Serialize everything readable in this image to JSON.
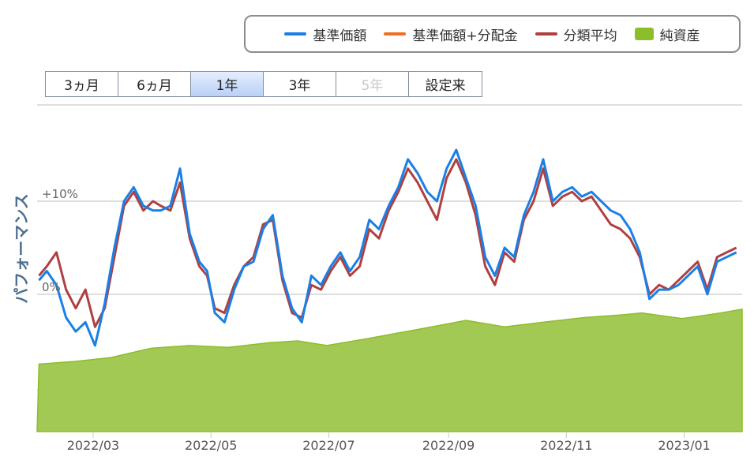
{
  "legend": {
    "items": [
      {
        "label": "基準価額",
        "color": "#1a7fe6",
        "kind": "line"
      },
      {
        "label": "基準価額+分配金",
        "color": "#f07020",
        "kind": "line"
      },
      {
        "label": "分類平均",
        "color": "#b04040",
        "kind": "line"
      },
      {
        "label": "純資産",
        "color": "#8cbd2a",
        "kind": "area"
      }
    ]
  },
  "range_buttons": [
    {
      "label": "3ヵ月",
      "state": "normal"
    },
    {
      "label": "6ヵ月",
      "state": "normal"
    },
    {
      "label": "1年",
      "state": "active"
    },
    {
      "label": "3年",
      "state": "normal"
    },
    {
      "label": "5年",
      "state": "disabled"
    },
    {
      "label": "設定来",
      "state": "normal"
    }
  ],
  "chart_data": {
    "type": "line",
    "ylabel": "パフォーマンス",
    "y_tick_labels": [
      "+10%",
      "0%"
    ],
    "y_ticks": [
      10,
      0
    ],
    "ylim": [
      -15,
      20
    ],
    "grid": true,
    "x_tick_labels": [
      "2022/03",
      "2022/05",
      "2022/07",
      "2022/09",
      "2022/11",
      "2023/01"
    ],
    "x_range": [
      "2022-01-31",
      "2023-01-31"
    ],
    "legend_position": "top-right",
    "colors": {
      "nav": "#1a7fe6",
      "category_avg": "#b04040",
      "net_assets_fill": "#a3c955",
      "net_assets_line": "#8cbd2a"
    },
    "series": [
      {
        "name": "基準価額",
        "x": [
          "2022-02-01",
          "2022-02-05",
          "2022-02-10",
          "2022-02-15",
          "2022-02-20",
          "2022-02-25",
          "2022-03-02",
          "2022-03-07",
          "2022-03-12",
          "2022-03-17",
          "2022-03-22",
          "2022-03-27",
          "2022-04-01",
          "2022-04-05",
          "2022-04-10",
          "2022-04-15",
          "2022-04-20",
          "2022-04-25",
          "2022-04-29",
          "2022-05-03",
          "2022-05-08",
          "2022-05-13",
          "2022-05-18",
          "2022-05-23",
          "2022-05-28",
          "2022-06-02",
          "2022-06-07",
          "2022-06-12",
          "2022-06-17",
          "2022-06-22",
          "2022-06-27",
          "2022-07-02",
          "2022-07-07",
          "2022-07-12",
          "2022-07-17",
          "2022-07-22",
          "2022-07-27",
          "2022-08-01",
          "2022-08-06",
          "2022-08-11",
          "2022-08-16",
          "2022-08-21",
          "2022-08-26",
          "2022-08-31",
          "2022-09-05",
          "2022-09-10",
          "2022-09-15",
          "2022-09-20",
          "2022-09-25",
          "2022-09-30",
          "2022-10-05",
          "2022-10-10",
          "2022-10-15",
          "2022-10-20",
          "2022-10-25",
          "2022-10-30",
          "2022-11-04",
          "2022-11-09",
          "2022-11-14",
          "2022-11-19",
          "2022-11-24",
          "2022-11-29",
          "2022-12-04",
          "2022-12-09",
          "2022-12-14",
          "2022-12-19",
          "2022-12-24",
          "2022-12-29",
          "2023-01-03",
          "2023-01-08",
          "2023-01-13",
          "2023-01-18",
          "2023-01-23",
          "2023-01-28"
        ],
        "y": [
          1.5,
          2.5,
          1.0,
          -2.5,
          -4.0,
          -3.0,
          -5.5,
          -1.0,
          5.0,
          10.0,
          11.5,
          9.5,
          9.0,
          9.0,
          9.5,
          13.5,
          6.5,
          3.5,
          2.5,
          -2.0,
          -3.0,
          0.5,
          3.0,
          3.5,
          7.0,
          8.5,
          2.0,
          -1.5,
          -3.0,
          2.0,
          1.0,
          3.0,
          4.5,
          2.5,
          4.0,
          8.0,
          7.0,
          9.5,
          11.5,
          14.5,
          13.0,
          11.0,
          10.0,
          13.5,
          15.5,
          12.5,
          9.5,
          4.0,
          2.0,
          5.0,
          4.0,
          8.5,
          11.0,
          14.5,
          10.0,
          11.0,
          11.5,
          10.5,
          11.0,
          10.0,
          9.0,
          8.5,
          7.0,
          4.5,
          -0.5,
          0.5,
          0.5,
          1.0,
          2.0,
          3.0,
          0.0,
          3.5,
          4.0,
          4.5
        ]
      },
      {
        "name": "分類平均",
        "x": [
          "2022-02-01",
          "2022-02-05",
          "2022-02-10",
          "2022-02-15",
          "2022-02-20",
          "2022-02-25",
          "2022-03-02",
          "2022-03-07",
          "2022-03-12",
          "2022-03-17",
          "2022-03-22",
          "2022-03-27",
          "2022-04-01",
          "2022-04-05",
          "2022-04-10",
          "2022-04-15",
          "2022-04-20",
          "2022-04-25",
          "2022-04-29",
          "2022-05-03",
          "2022-05-08",
          "2022-05-13",
          "2022-05-18",
          "2022-05-23",
          "2022-05-28",
          "2022-06-02",
          "2022-06-07",
          "2022-06-12",
          "2022-06-17",
          "2022-06-22",
          "2022-06-27",
          "2022-07-02",
          "2022-07-07",
          "2022-07-12",
          "2022-07-17",
          "2022-07-22",
          "2022-07-27",
          "2022-08-01",
          "2022-08-06",
          "2022-08-11",
          "2022-08-16",
          "2022-08-21",
          "2022-08-26",
          "2022-08-31",
          "2022-09-05",
          "2022-09-10",
          "2022-09-15",
          "2022-09-20",
          "2022-09-25",
          "2022-09-30",
          "2022-10-05",
          "2022-10-10",
          "2022-10-15",
          "2022-10-20",
          "2022-10-25",
          "2022-10-30",
          "2022-11-04",
          "2022-11-09",
          "2022-11-14",
          "2022-11-19",
          "2022-11-24",
          "2022-11-29",
          "2022-12-04",
          "2022-12-09",
          "2022-12-14",
          "2022-12-19",
          "2022-12-24",
          "2022-12-29",
          "2023-01-03",
          "2023-01-08",
          "2023-01-13",
          "2023-01-18",
          "2023-01-23",
          "2023-01-28"
        ],
        "y": [
          2.0,
          3.0,
          4.5,
          0.5,
          -1.5,
          0.5,
          -3.5,
          -1.5,
          4.0,
          9.5,
          11.0,
          9.0,
          10.0,
          9.5,
          9.0,
          12.0,
          6.0,
          3.0,
          2.0,
          -1.5,
          -2.0,
          1.0,
          3.0,
          4.0,
          7.5,
          8.0,
          1.5,
          -2.0,
          -2.5,
          1.0,
          0.5,
          2.5,
          4.0,
          2.0,
          3.0,
          7.0,
          6.0,
          9.0,
          11.0,
          13.5,
          12.0,
          10.0,
          8.0,
          12.5,
          14.5,
          12.0,
          8.5,
          3.0,
          1.0,
          4.5,
          3.5,
          8.0,
          10.0,
          13.5,
          9.5,
          10.5,
          11.0,
          10.0,
          10.5,
          9.0,
          7.5,
          7.0,
          6.0,
          4.0,
          0.0,
          1.0,
          0.5,
          1.5,
          2.5,
          3.5,
          0.5,
          4.0,
          4.5,
          5.0
        ]
      },
      {
        "name": "純資産",
        "x": [
          "2022-02-01",
          "2022-02-20",
          "2022-03-10",
          "2022-03-31",
          "2022-04-20",
          "2022-05-10",
          "2022-05-31",
          "2022-06-15",
          "2022-06-30",
          "2022-07-20",
          "2022-08-10",
          "2022-08-31",
          "2022-09-10",
          "2022-09-30",
          "2022-10-20",
          "2022-11-10",
          "2022-11-30",
          "2022-12-10",
          "2022-12-31",
          "2023-01-20",
          "2023-01-31"
        ],
        "y": [
          -7.5,
          -7.2,
          -6.8,
          -5.8,
          -5.5,
          -5.7,
          -5.2,
          -5.0,
          -5.5,
          -4.8,
          -4.0,
          -3.2,
          -2.8,
          -3.5,
          -3.0,
          -2.5,
          -2.2,
          -2.0,
          -2.6,
          -2.0,
          -1.6
        ]
      }
    ]
  }
}
